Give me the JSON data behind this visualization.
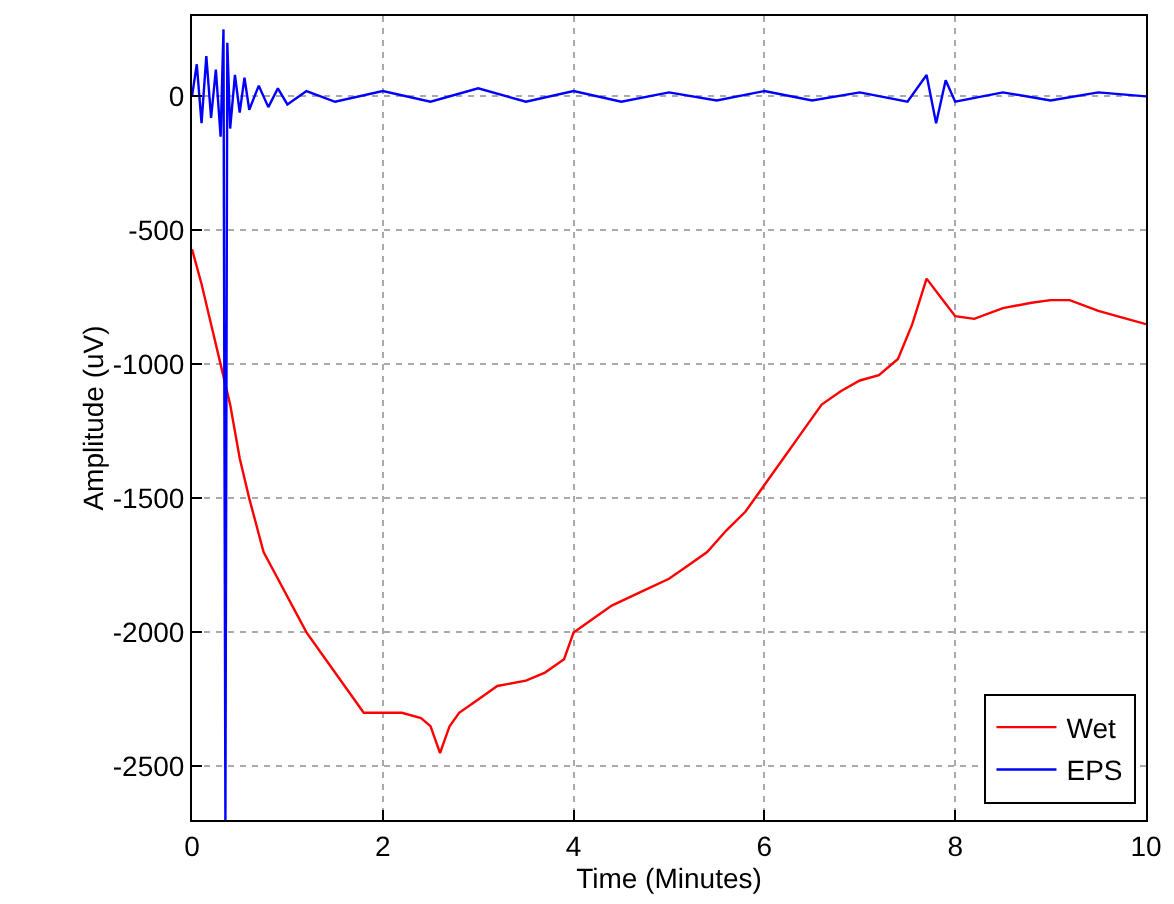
{
  "chart_data": {
    "type": "line",
    "xlabel": "Time (Minutes)",
    "ylabel": "Amplitude (uV)",
    "xlim": [
      0,
      10
    ],
    "xticks": [
      0,
      2,
      4,
      6,
      8,
      10
    ],
    "ylim": [
      -2700,
      300
    ],
    "yticks": [
      -2500,
      -2000,
      -1500,
      -1000,
      -500,
      0
    ],
    "grid": true,
    "legend": "bottom right",
    "marker": "none",
    "line_style": "solid",
    "series": [
      {
        "name": "Wet",
        "color": "#ff0000",
        "x": [
          0,
          0.1,
          0.2,
          0.3,
          0.4,
          0.5,
          0.6,
          0.75,
          0.9,
          1.05,
          1.2,
          1.4,
          1.6,
          1.8,
          2.0,
          2.2,
          2.4,
          2.5,
          2.6,
          2.7,
          2.8,
          3.0,
          3.2,
          3.5,
          3.7,
          3.9,
          4.0,
          4.2,
          4.4,
          4.7,
          5.0,
          5.2,
          5.4,
          5.6,
          5.8,
          6.0,
          6.2,
          6.4,
          6.6,
          6.8,
          7.0,
          7.2,
          7.4,
          7.55,
          7.7,
          7.85,
          8.0,
          8.2,
          8.5,
          8.8,
          9.0,
          9.2,
          9.5,
          9.8,
          10
        ],
        "values": [
          -570,
          -700,
          -850,
          -1000,
          -1150,
          -1350,
          -1500,
          -1700,
          -1800,
          -1900,
          -2000,
          -2100,
          -2200,
          -2300,
          -2300,
          -2300,
          -2320,
          -2350,
          -2450,
          -2350,
          -2300,
          -2250,
          -2200,
          -2180,
          -2150,
          -2100,
          -2000,
          -1950,
          -1900,
          -1850,
          -1800,
          -1750,
          -1700,
          -1620,
          -1550,
          -1450,
          -1350,
          -1250,
          -1150,
          -1100,
          -1060,
          -1040,
          -980,
          -850,
          -680,
          -750,
          -820,
          -830,
          -790,
          -770,
          -760,
          -760,
          -800,
          -830,
          -850
        ]
      },
      {
        "name": "EPS",
        "color": "#0000ff",
        "x": [
          0,
          0.05,
          0.1,
          0.15,
          0.2,
          0.25,
          0.3,
          0.33,
          0.35,
          0.37,
          0.4,
          0.45,
          0.5,
          0.55,
          0.6,
          0.7,
          0.8,
          0.9,
          1.0,
          1.2,
          1.5,
          2.0,
          2.5,
          3.0,
          3.5,
          4.0,
          4.5,
          5.0,
          5.5,
          6.0,
          6.5,
          7.0,
          7.5,
          7.7,
          7.8,
          7.9,
          8.0,
          8.5,
          9.0,
          9.5,
          10
        ],
        "values": [
          0,
          120,
          -100,
          150,
          -80,
          100,
          -150,
          250,
          -2700,
          200,
          -120,
          80,
          -60,
          70,
          -50,
          40,
          -40,
          30,
          -30,
          20,
          -20,
          20,
          -20,
          30,
          -20,
          20,
          -20,
          15,
          -15,
          20,
          -15,
          15,
          -20,
          80,
          -100,
          60,
          -20,
          15,
          -15,
          15,
          0
        ]
      }
    ]
  }
}
